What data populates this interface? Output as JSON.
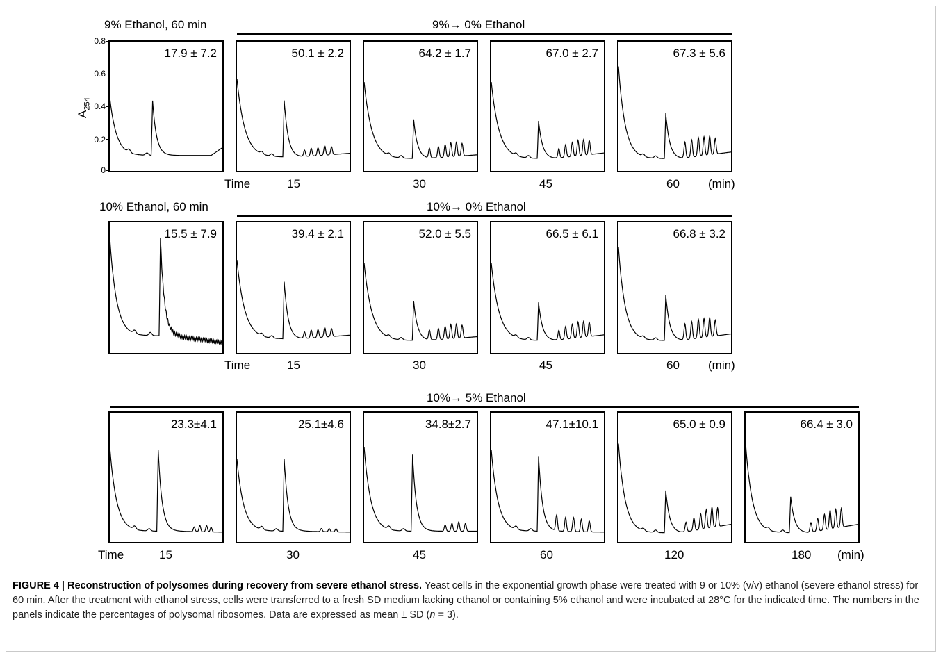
{
  "rows": [
    {
      "left_label": "9% Ethanol, 60 min",
      "group_label": "9%→ 0% Ethanol",
      "y_axis": {
        "label": "A",
        "label_sub": "254",
        "ticks": [
          "0.8",
          "0.6",
          "0.4",
          "0.2",
          "0"
        ]
      },
      "panels": [
        {
          "pct": "17.9 ± 7.2",
          "profile": "stress9"
        },
        {
          "pct": "50.1 ± 2.2",
          "profile": "r15"
        },
        {
          "pct": "64.2 ± 1.7",
          "profile": "r30"
        },
        {
          "pct": "67.0 ± 2.7",
          "profile": "r45"
        },
        {
          "pct": "67.3 ± 5.6",
          "profile": "r60"
        }
      ],
      "time_labels": [
        "Time",
        "15",
        "30",
        "45",
        "60",
        "(min)"
      ]
    },
    {
      "left_label": "10% Ethanol, 60 min",
      "group_label": "10%→ 0% Ethanol",
      "panels": [
        {
          "pct": "15.5 ± 7.9",
          "profile": "stress10"
        },
        {
          "pct": "39.4 ± 2.1",
          "profile": "r15"
        },
        {
          "pct": "52.0 ± 5.5",
          "profile": "r30"
        },
        {
          "pct": "66.5 ± 6.1",
          "profile": "r45"
        },
        {
          "pct": "66.8 ± 3.2",
          "profile": "r60"
        }
      ],
      "time_labels": [
        "Time",
        "15",
        "30",
        "45",
        "60",
        "(min)"
      ]
    },
    {
      "group_label": "10%→ 5% Ethanol",
      "panels": [
        {
          "pct": "23.3±4.1",
          "profile": "f15"
        },
        {
          "pct": "25.1±4.6",
          "profile": "f30"
        },
        {
          "pct": "34.8±2.7",
          "profile": "f45"
        },
        {
          "pct": "47.1±10.1",
          "profile": "f60"
        },
        {
          "pct": "65.0 ± 0.9",
          "profile": "f120"
        },
        {
          "pct": "66.4 ± 3.0",
          "profile": "f180"
        }
      ],
      "time_labels": [
        "Time",
        "15",
        "30",
        "45",
        "60",
        "120",
        "180",
        "(min)"
      ]
    }
  ],
  "caption": {
    "title": "FIGURE 4 | Reconstruction of polysomes during recovery from severe ethanol stress.",
    "body_1": " Yeast cells in the exponential growth phase were treated with 9 or 10% (v/v) ethanol (severe ethanol stress) for 60 min. After the treatment with ethanol stress, cells were transferred to a fresh SD medium lacking ethanol or containing 5% ethanol and were incubated at 28°C for the indicated time. The numbers in the panels indicate the percentages of polysomal ribosomes. Data are expressed as mean ± SD (",
    "n": "n",
    "body_2": " = 3)."
  },
  "colors": {
    "ink": "#000000",
    "caption_text": "#222222"
  }
}
